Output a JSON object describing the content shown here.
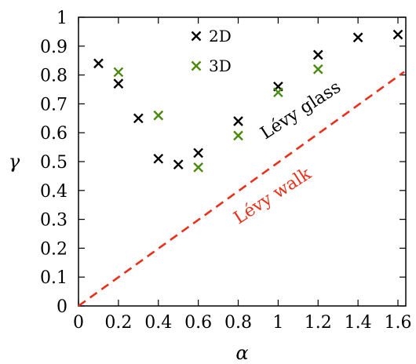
{
  "chart_data": {
    "type": "scatter",
    "xlabel": "α",
    "ylabel": "γ",
    "xlim": [
      0,
      1.65
    ],
    "ylim": [
      0,
      1
    ],
    "xticks": [
      "0",
      "0.2",
      "0.4",
      "0.6",
      "0.8",
      "1",
      "1.2",
      "1.4",
      "1.6"
    ],
    "xtick_values": [
      0,
      0.2,
      0.4,
      0.6,
      0.8,
      1,
      1.2,
      1.4,
      1.6
    ],
    "yticks": [
      "0",
      "0.1",
      "0.2",
      "0.3",
      "0.4",
      "0.5",
      "0.6",
      "0.7",
      "0.8",
      "0.9",
      "1"
    ],
    "ytick_values": [
      0,
      0.1,
      0.2,
      0.3,
      0.4,
      0.5,
      0.6,
      0.7,
      0.8,
      0.9,
      1
    ],
    "series": [
      {
        "name": "2D",
        "color": "#000000",
        "marker": "x",
        "x": [
          0.1,
          0.2,
          0.3,
          0.4,
          0.5,
          0.6,
          0.8,
          1.0,
          1.2,
          1.4,
          1.6
        ],
        "y": [
          0.84,
          0.77,
          0.65,
          0.51,
          0.49,
          0.53,
          0.64,
          0.76,
          0.87,
          0.93,
          0.94
        ]
      },
      {
        "name": "3D",
        "color": "#4a8a0c",
        "marker": "x",
        "x": [
          0.2,
          0.4,
          0.6,
          0.8,
          1.0,
          1.2
        ],
        "y": [
          0.81,
          0.66,
          0.48,
          0.59,
          0.74,
          0.82
        ]
      }
    ],
    "reference_line": {
      "x": [
        0,
        1.6
      ],
      "y": [
        0,
        0.8
      ],
      "color": "#e8301a",
      "style": "dashed"
    },
    "annotations": [
      {
        "text": "Lévy glass",
        "color": "#000000"
      },
      {
        "text": "Lévy walk",
        "color": "#e8301a"
      }
    ],
    "legend_position": "top-center",
    "grid": false
  }
}
